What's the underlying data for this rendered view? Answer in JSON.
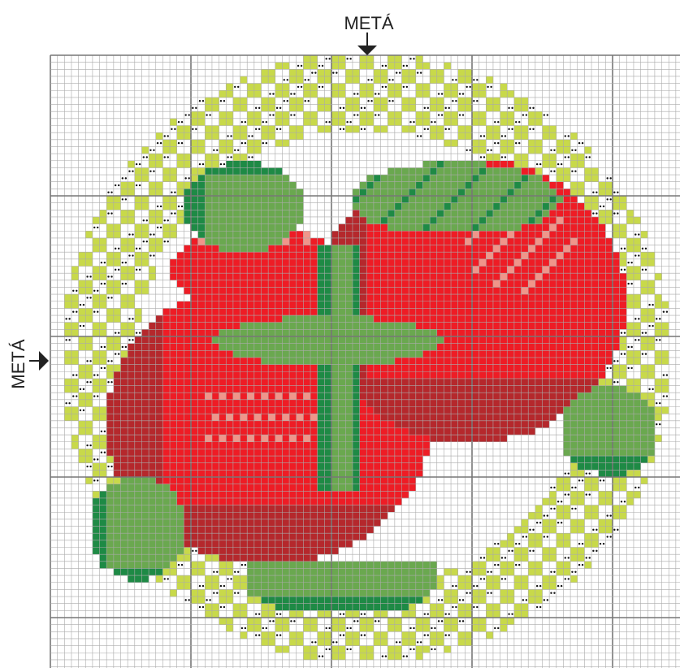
{
  "labels": {
    "top": "METÁ",
    "left": "METÁ"
  }
}
